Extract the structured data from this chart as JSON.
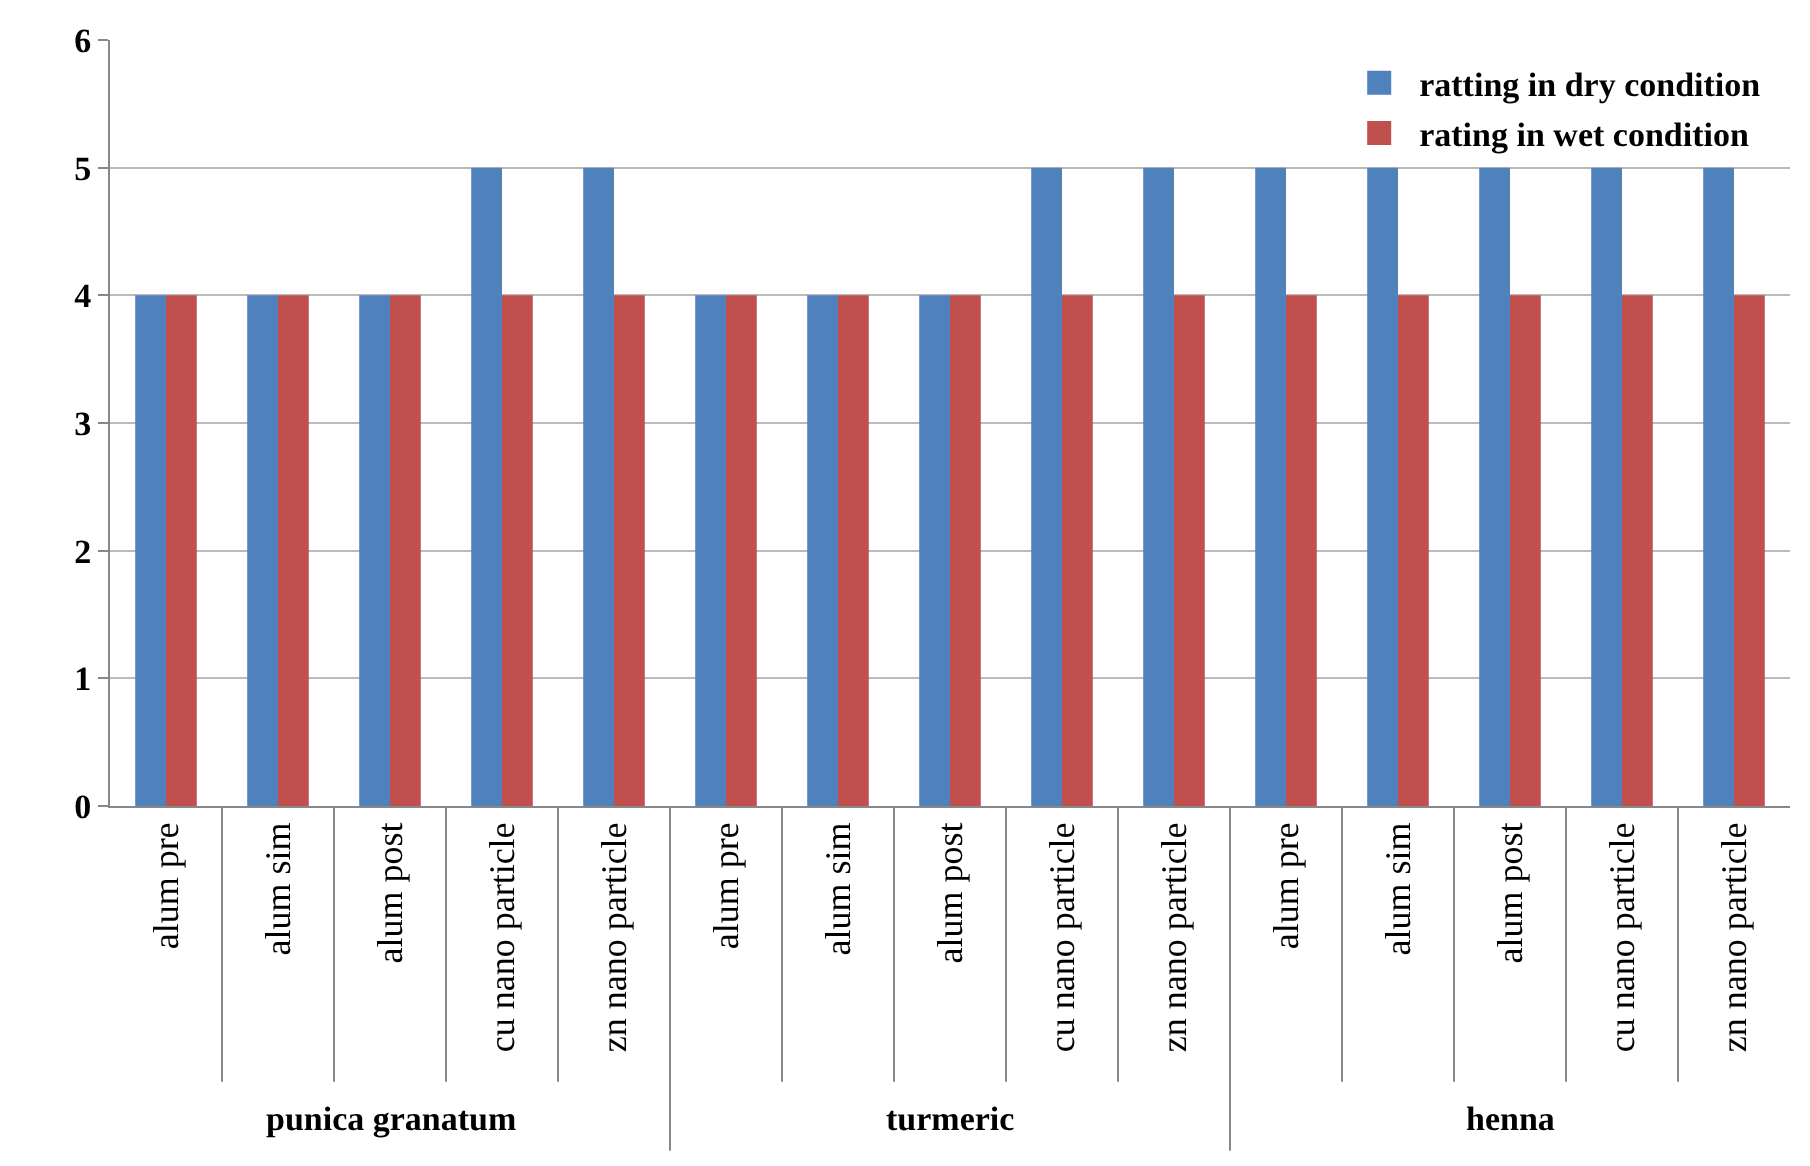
{
  "chart_data": {
    "type": "bar",
    "categories": [
      "alum pre",
      "alum sim",
      "alum post",
      "cu nano particle",
      "zn nano particle",
      "alum pre",
      "alum sim",
      "alum post",
      "cu nano particle",
      "zn nano particle",
      "alum pre",
      "alum sim",
      "alum post",
      "cu nano particle",
      "zn nano particle"
    ],
    "series": [
      {
        "name": "ratting in dry condition",
        "color": "#4f81bd",
        "values": [
          4,
          4,
          4,
          5,
          5,
          4,
          4,
          4,
          5,
          5,
          5,
          5,
          5,
          5,
          5
        ]
      },
      {
        "name": "rating in wet condition",
        "color": "#c0504d",
        "values": [
          4,
          4,
          4,
          4,
          4,
          4,
          4,
          4,
          4,
          4,
          4,
          4,
          4,
          4,
          4
        ]
      }
    ],
    "annotations": [
      "punica granatum",
      "turmeric",
      "henna"
    ],
    "ylim": [
      0,
      6
    ],
    "yticks": [
      0,
      1,
      2,
      3,
      4,
      5,
      6
    ],
    "grid": "y",
    "legend": "top right"
  }
}
